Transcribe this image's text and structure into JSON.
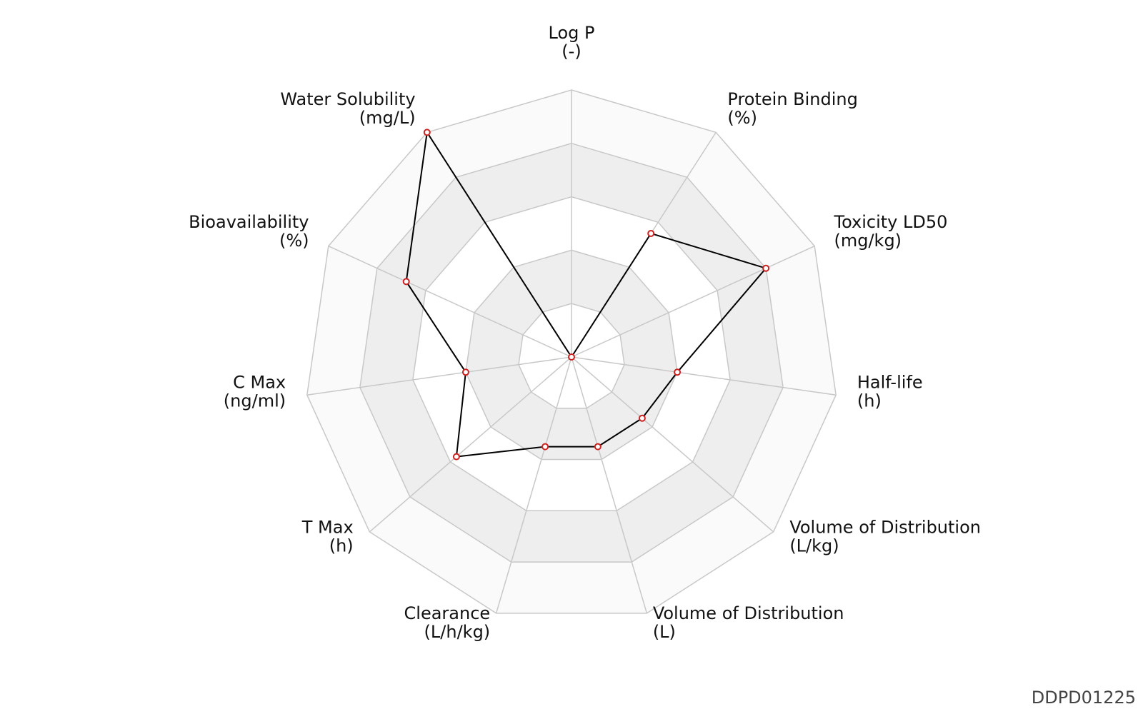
{
  "chart_data": {
    "type": "radar",
    "categories": [
      "Log P",
      "Protein Binding",
      "Toxicity LD50",
      "Half-life",
      "Volume of Distribution",
      "Volume of Distribution",
      "Clearance",
      "T Max",
      "C Max",
      "Bioavailability",
      "Water Solubility"
    ],
    "units": [
      "(-)",
      "(%)",
      "(mg/kg)",
      "(h)",
      "(L/kg)",
      "(L)",
      "(L/h/kg)",
      "(h)",
      "(ng/ml)",
      "(%)",
      "(mg/L)"
    ],
    "values": [
      0,
      0.55,
      0.8,
      0.4,
      0.35,
      0.35,
      0.35,
      0.57,
      0.4,
      0.68,
      1.0
    ],
    "ylim": [
      0,
      1
    ],
    "yticks": [
      0.2,
      0.4,
      0.6,
      0.8,
      1.0
    ],
    "color": "#000000",
    "marker_color": "#cc2222",
    "grid": true
  },
  "document_id": "DDPD01225"
}
